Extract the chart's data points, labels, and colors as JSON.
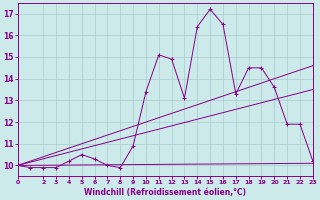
{
  "xlabel": "Windchill (Refroidissement éolien,°C)",
  "bg_color": "#cceaea",
  "line_color": "#880088",
  "grid_color": "#aacccc",
  "xlim": [
    0,
    23
  ],
  "ylim": [
    9.5,
    17.5
  ],
  "yticks": [
    10,
    11,
    12,
    13,
    14,
    15,
    16,
    17
  ],
  "xticks": [
    0,
    2,
    3,
    4,
    5,
    6,
    7,
    8,
    9,
    10,
    11,
    12,
    13,
    14,
    15,
    16,
    17,
    18,
    19,
    20,
    21,
    22,
    23
  ],
  "main_x": [
    0,
    1,
    2,
    3,
    4,
    5,
    6,
    7,
    8,
    9,
    10,
    11,
    12,
    13,
    14,
    15,
    16,
    17,
    18,
    19,
    20,
    21,
    22,
    23
  ],
  "main_y": [
    10.0,
    9.9,
    9.9,
    9.9,
    10.2,
    10.5,
    10.3,
    10.0,
    9.9,
    10.9,
    13.4,
    15.1,
    14.9,
    13.1,
    16.4,
    17.2,
    16.5,
    13.3,
    14.5,
    14.5,
    13.6,
    11.9,
    11.9,
    10.2
  ],
  "trend1_x": [
    0,
    23
  ],
  "trend1_y": [
    10.0,
    14.6
  ],
  "trend2_x": [
    0,
    23
  ],
  "trend2_y": [
    10.0,
    13.5
  ],
  "trend3_x": [
    0,
    23
  ],
  "trend3_y": [
    10.0,
    10.1
  ]
}
